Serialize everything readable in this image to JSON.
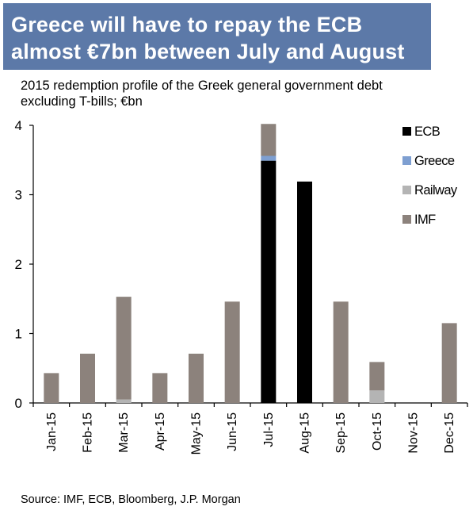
{
  "title_lines": [
    "Greece will have to repay the ECB",
    "almost €7bn between July and August"
  ],
  "subtitle_lines": [
    "2015 redemption profile of the Greek general government debt",
    "excluding T-bills; €bn"
  ],
  "source": "Source: IMF, ECB, Bloomberg, J.P. Morgan",
  "colors": {
    "banner": "#5c79a8",
    "ECB": "#000000",
    "Greece": "#7e9fd1",
    "Railway": "#b4b4b4",
    "IMF": "#8c827c"
  },
  "chart_data": {
    "type": "bar",
    "stacked": true,
    "categories": [
      "Jan-15",
      "Feb-15",
      "Mar-15",
      "Apr-15",
      "May-15",
      "Jun-15",
      "Jul-15",
      "Aug-15",
      "Sep-15",
      "Oct-15",
      "Nov-15",
      "Dec-15"
    ],
    "series": [
      {
        "name": "ECB",
        "values": [
          0,
          0,
          0,
          0,
          0,
          0,
          3.49,
          3.19,
          0,
          0,
          0,
          0
        ]
      },
      {
        "name": "Greece",
        "values": [
          0,
          0,
          0,
          0,
          0,
          0,
          0.07,
          0,
          0,
          0,
          0,
          0
        ]
      },
      {
        "name": "Railway",
        "values": [
          0,
          0,
          0.05,
          0,
          0,
          0,
          0,
          0,
          0,
          0.18,
          0,
          0
        ]
      },
      {
        "name": "IMF",
        "values": [
          0.43,
          0.71,
          1.48,
          0.43,
          0.71,
          1.46,
          0.46,
          0,
          1.46,
          0.41,
          0,
          1.15
        ]
      }
    ],
    "yticks": [
      0,
      1,
      2,
      3,
      4
    ],
    "ylim": [
      0,
      4
    ],
    "legend_position": "top-right",
    "grid": false
  }
}
